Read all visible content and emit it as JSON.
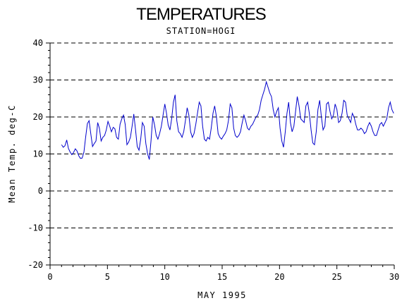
{
  "chart_data": {
    "type": "line",
    "title": "TEMPERATURES",
    "subtitle": "STATION=HOGI",
    "xlabel": "MAY 1995",
    "ylabel": "Mean Temp. deg-C",
    "xlim": [
      0,
      30
    ],
    "ylim": [
      -20,
      40
    ],
    "xticks": [
      0,
      5,
      10,
      15,
      20,
      25,
      30
    ],
    "yticks": [
      -20,
      -10,
      0,
      10,
      20,
      30,
      40
    ],
    "grid": "horizontal dashed",
    "series": [
      {
        "color": "#0000cc",
        "x": [
          1.0,
          1.15,
          1.3,
          1.45,
          1.6,
          1.75,
          1.9,
          2.05,
          2.2,
          2.35,
          2.5,
          2.65,
          2.8,
          2.95,
          3.1,
          3.25,
          3.4,
          3.55,
          3.7,
          3.85,
          4.0,
          4.15,
          4.3,
          4.45,
          4.6,
          4.75,
          4.9,
          5.05,
          5.2,
          5.35,
          5.5,
          5.65,
          5.8,
          5.95,
          6.1,
          6.25,
          6.4,
          6.55,
          6.7,
          6.85,
          7.0,
          7.15,
          7.3,
          7.45,
          7.6,
          7.75,
          7.9,
          8.05,
          8.2,
          8.35,
          8.5,
          8.65,
          8.8,
          8.95,
          9.1,
          9.25,
          9.4,
          9.55,
          9.7,
          9.85,
          10.0,
          10.15,
          10.3,
          10.45,
          10.6,
          10.75,
          10.9,
          11.05,
          11.2,
          11.35,
          11.5,
          11.65,
          11.8,
          11.95,
          12.1,
          12.25,
          12.4,
          12.55,
          12.7,
          12.85,
          13.0,
          13.15,
          13.3,
          13.45,
          13.6,
          13.75,
          13.9,
          14.05,
          14.2,
          14.35,
          14.5,
          14.65,
          14.8,
          14.95,
          15.1,
          15.25,
          15.4,
          15.55,
          15.7,
          15.85,
          16.0,
          16.15,
          16.3,
          16.45,
          16.6,
          16.75,
          16.9,
          17.05,
          17.2,
          17.35,
          17.5,
          17.65,
          17.8,
          17.95,
          18.1,
          18.25,
          18.4,
          18.55,
          18.7,
          18.85,
          19.0,
          19.15,
          19.3,
          19.45,
          19.6,
          19.75,
          19.9,
          20.05,
          20.2,
          20.35,
          20.5,
          20.65,
          20.8,
          20.95,
          21.1,
          21.25,
          21.4,
          21.55,
          21.7,
          21.85,
          22.0,
          22.15,
          22.3,
          22.45,
          22.6,
          22.75,
          22.9,
          23.05,
          23.2,
          23.35,
          23.5,
          23.65,
          23.8,
          23.95,
          24.1,
          24.25,
          24.4,
          24.55,
          24.7,
          24.85,
          25.0,
          25.15,
          25.3,
          25.45,
          25.6,
          25.75,
          25.9,
          26.05,
          26.2,
          26.35,
          26.5,
          26.65,
          26.8,
          26.95,
          27.1,
          27.25,
          27.4,
          27.55,
          27.7,
          27.85,
          28.0,
          28.15,
          28.3,
          28.45,
          28.6,
          28.75,
          28.9,
          29.05,
          29.2,
          29.35,
          29.5,
          29.65,
          29.8,
          29.95
        ],
        "values": [
          12.5,
          11.8,
          12.2,
          13.8,
          11.5,
          10.5,
          9.8,
          10.4,
          11.4,
          10.8,
          9.5,
          8.8,
          8.9,
          10.5,
          14.5,
          18.2,
          19.0,
          15.5,
          12.0,
          12.8,
          13.5,
          18.5,
          17.0,
          13.5,
          14.5,
          15.0,
          16.5,
          18.8,
          17.5,
          16.0,
          17.2,
          16.8,
          14.5,
          14.0,
          18.0,
          19.5,
          20.5,
          18.0,
          12.5,
          13.2,
          14.5,
          17.5,
          20.8,
          16.5,
          12.0,
          11.0,
          14.0,
          18.5,
          17.5,
          12.8,
          10.0,
          8.5,
          13.5,
          20.0,
          18.0,
          15.0,
          14.0,
          15.5,
          17.5,
          20.5,
          23.5,
          21.0,
          17.8,
          16.5,
          19.5,
          24.0,
          26.0,
          19.0,
          16.0,
          15.5,
          14.5,
          16.0,
          19.0,
          22.5,
          20.5,
          16.0,
          14.5,
          15.5,
          18.0,
          21.0,
          24.0,
          23.0,
          17.5,
          14.0,
          13.5,
          14.5,
          14.0,
          17.0,
          21.0,
          23.0,
          20.0,
          15.5,
          14.5,
          14.0,
          14.8,
          15.5,
          16.5,
          19.0,
          23.5,
          22.5,
          17.0,
          15.0,
          14.5,
          15.0,
          16.0,
          18.5,
          20.5,
          19.0,
          17.0,
          16.5,
          17.5,
          18.0,
          19.0,
          20.0,
          20.5,
          22.0,
          24.5,
          26.0,
          27.5,
          29.5,
          28.0,
          26.5,
          25.5,
          22.0,
          20.0,
          21.5,
          22.5,
          17.0,
          13.5,
          11.8,
          16.0,
          21.0,
          24.0,
          18.5,
          16.0,
          17.5,
          21.5,
          25.5,
          23.0,
          19.5,
          19.0,
          18.5,
          23.0,
          24.0,
          21.0,
          16.5,
          13.0,
          12.5,
          16.0,
          22.0,
          24.5,
          20.0,
          16.5,
          17.5,
          23.5,
          24.0,
          21.5,
          19.5,
          20.5,
          23.5,
          22.0,
          18.5,
          19.0,
          21.0,
          24.5,
          24.0,
          20.5,
          19.5,
          18.5,
          21.0,
          20.0,
          18.0,
          16.5,
          16.5,
          17.0,
          16.5,
          15.5,
          16.0,
          17.5,
          18.5,
          17.5,
          16.0,
          15.0,
          15.0,
          16.5,
          18.0,
          18.5,
          17.5,
          18.5,
          19.5,
          22.5,
          24.0,
          22.0,
          21.0
        ]
      }
    ]
  }
}
